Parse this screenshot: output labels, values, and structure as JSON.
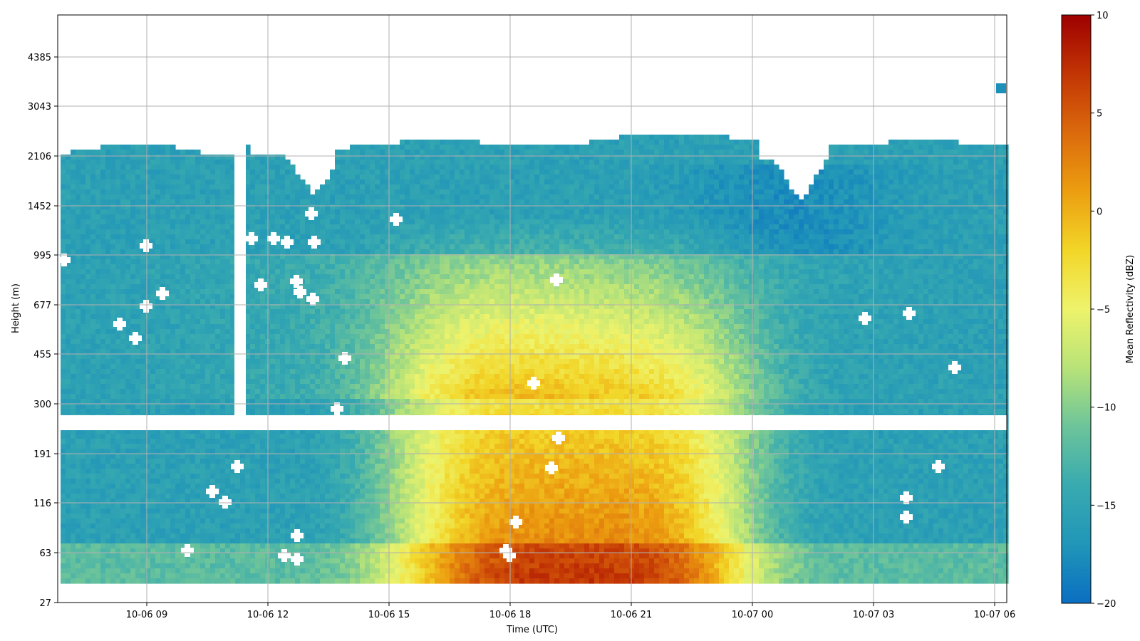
{
  "chart_data": {
    "type": "heatmap",
    "title": "",
    "xlabel": "Time (UTC)",
    "ylabel": "Height (m)",
    "x_ticks": [
      "10-06 09",
      "10-06 12",
      "10-06 15",
      "10-06 18",
      "10-06 21",
      "10-07 00",
      "10-07 03",
      "10-07 06"
    ],
    "y_ticks": [
      "27",
      "63",
      "116",
      "191",
      "300",
      "455",
      "677",
      "995",
      "1452",
      "2106",
      "3043",
      "4385"
    ],
    "colorbar": {
      "label": "Mean Reflectivity (dBZ)",
      "range": [
        -20,
        10
      ],
      "ticks": [
        "10",
        "5",
        "0",
        "−5",
        "−10",
        "−15",
        "−20"
      ],
      "colormap": [
        "#0a6fc2",
        "#2196b8",
        "#38aab0",
        "#6cc49a",
        "#b8e378",
        "#eef36b",
        "#f2d628",
        "#ec9e10",
        "#db6a0c",
        "#c23505",
        "#9e0000"
      ]
    },
    "grid": true,
    "legend": "none"
  }
}
